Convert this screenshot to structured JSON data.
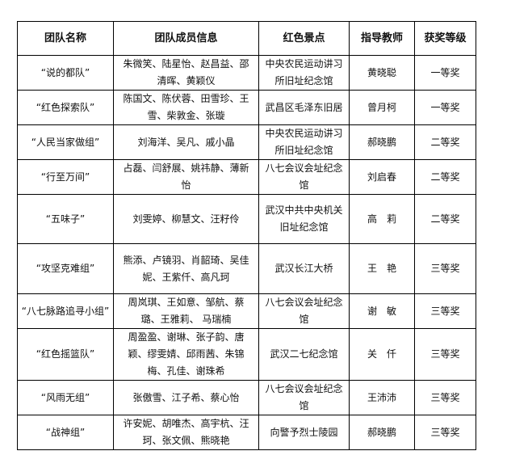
{
  "headers": [
    "团队名称",
    "团队成员信息",
    "红色景点",
    "指导教师",
    "获奖等级"
  ],
  "rows": [
    {
      "team": "“说的都队”",
      "members": "朱微笑、陆星怡、赵昌益、邵清晖、黄颖仪",
      "site": "中央农民运动讲习所旧址纪念馆",
      "teacher": "黄晓聪",
      "award": "一等奖"
    },
    {
      "team": "“红色探索队”",
      "members": "陈国文、陈伏蓉、田雪珍、王雪、柴敦金、张璇",
      "site": "武昌区毛泽东旧居",
      "teacher": "曾月柯",
      "award": "一等奖"
    },
    {
      "team": "“人民当家做组”",
      "members": "刘海洋、吴凡、戚小晶",
      "site": "中央农民运动讲习所旧址纪念馆",
      "teacher": "郝晓鹏",
      "award": "二等奖"
    },
    {
      "team": "“行至万间”",
      "members": "占磊、闫舒展、姚祎静、薄新怡",
      "site": "八七会议会址纪念馆",
      "teacher": "刘启春",
      "award": "二等奖"
    },
    {
      "team": "“五味子”",
      "members": "刘雯婷、柳慧文、汪籽伶",
      "site": "武汉中共中央机关旧址纪念馆",
      "teacher": "高　莉",
      "award": "二等奖"
    },
    {
      "team": "“攻坚克难组”",
      "members": "熊添、卢镜羽、肖韶琦、吴佳妮、王紫仟、高凡珂",
      "site": "武汉长江大桥",
      "teacher": "王　艳",
      "award": "三等奖"
    },
    {
      "team": "“八七脉路追寻小组”",
      "members": "周岚琪、王如意、邹航、蔡璐、王雅莉、 马瑞楠",
      "site": "八七会议会址纪念馆",
      "teacher": "谢　敏",
      "award": "三等奖"
    },
    {
      "team": "“红色摇篮队”",
      "members": "周盈盈、谢琳、张子韵、唐颖、缪雯婧、邱雨茜、朱锦梅、孔佳、谢珠希",
      "site": "武汉二七纪念馆",
      "teacher": "关　仟",
      "award": "三等奖"
    },
    {
      "team": "“风雨无组”",
      "members": "张傲雪、江子希、蔡心怡",
      "site": "八七会议会址纪念馆",
      "teacher": "王沛沛",
      "award": "三等奖"
    },
    {
      "team": "“战神组”",
      "members": "许安妮、胡唯杰、高宇杭、汪珂、张文佩、熊晓艳",
      "site": "向警予烈士陵园",
      "teacher": "郝晓鹏",
      "award": "三等奖"
    }
  ]
}
